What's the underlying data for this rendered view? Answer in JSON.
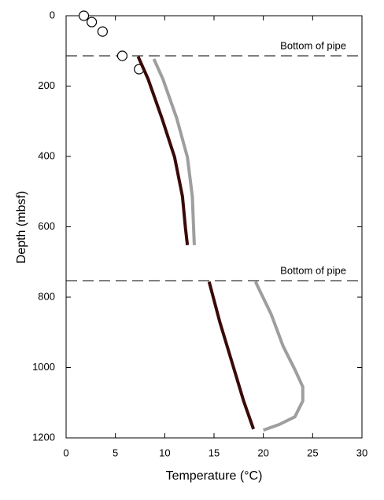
{
  "chart_data": {
    "type": "line",
    "x_label": "Temperature (°C)",
    "y_label": "Depth (mbsf)",
    "xlim": [
      0,
      30
    ],
    "xticks": [
      0,
      5,
      10,
      15,
      20,
      25,
      30
    ],
    "ylim": [
      0,
      1200
    ],
    "yticks": [
      0,
      200,
      400,
      600,
      800,
      1000,
      1200
    ],
    "y_inverted": true,
    "series": [
      {
        "mode": "markers",
        "color": "#000000",
        "x": [
          1.8,
          2.6,
          3.7,
          5.7,
          7.4
        ],
        "y": [
          0,
          18,
          45,
          114,
          152
        ]
      },
      {
        "mode": "line",
        "color": "#3a0a08",
        "x": [
          7.3,
          8.3,
          9.7,
          11.0,
          11.8,
          12.1,
          12.3
        ],
        "y": [
          116,
          179,
          290,
          402,
          514,
          603,
          652
        ]
      },
      {
        "mode": "line",
        "color": "#9e9e9e",
        "x": [
          8.9,
          9.8,
          11.2,
          12.3,
          12.8,
          13.0
        ],
        "y": [
          123,
          179,
          290,
          402,
          514,
          652
        ]
      },
      {
        "mode": "line",
        "color": "#3a0a08",
        "x": [
          14.5,
          15.6,
          16.8,
          18.0,
          19.0
        ],
        "y": [
          756,
          872,
          983,
          1095,
          1175
        ]
      },
      {
        "mode": "line",
        "color": "#9e9e9e",
        "x": [
          19.2,
          20.8,
          22.0,
          23.2,
          24.0,
          24.0,
          23.2,
          21.6,
          20.0
        ],
        "y": [
          756,
          849,
          939,
          1006,
          1055,
          1095,
          1140,
          1162,
          1178
        ]
      }
    ],
    "annotations": [
      {
        "text": "Bottom of pipe",
        "y": 114
      },
      {
        "text": "Bottom of pipe",
        "y": 753
      }
    ]
  }
}
